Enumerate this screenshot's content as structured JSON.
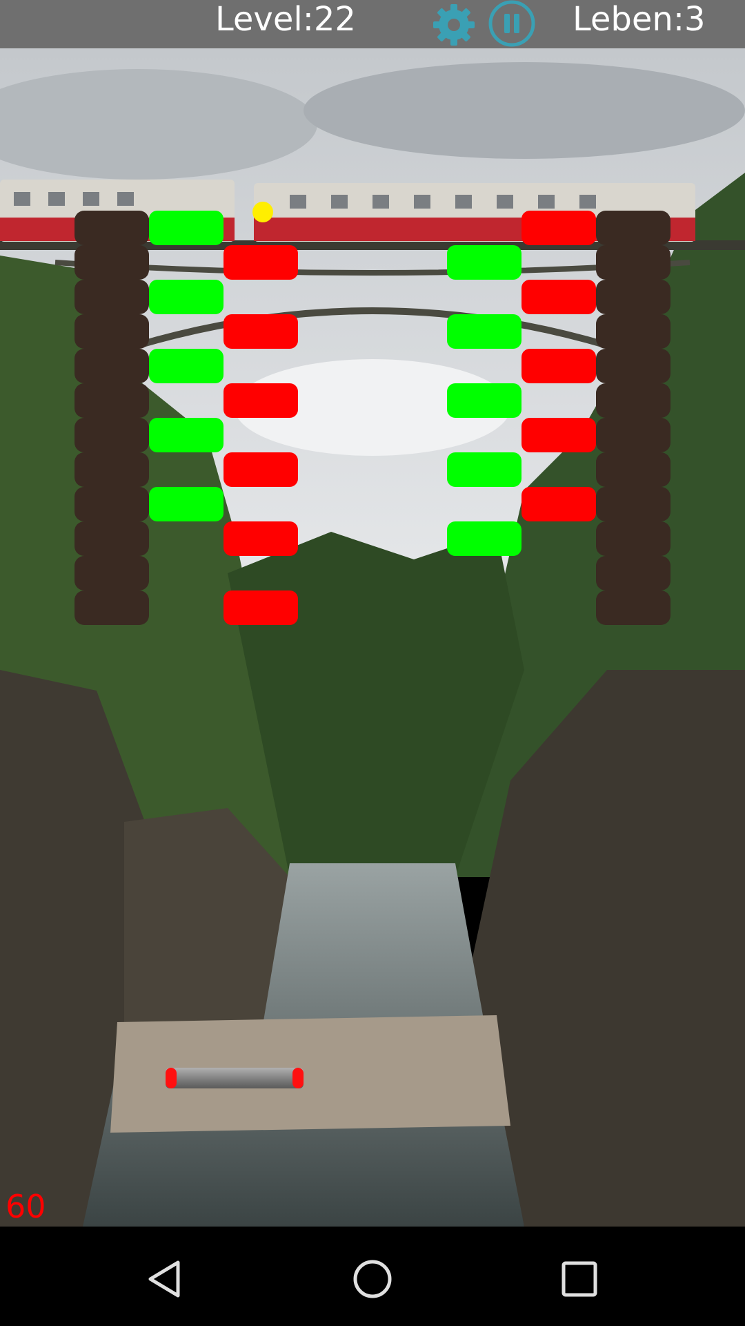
{
  "hud": {
    "level_label": "Level:22",
    "lives_label": "Leben:3",
    "settings_icon": "gear-icon",
    "pause_icon": "pause-icon",
    "accent_color": "#3aa0b4"
  },
  "game": {
    "fps": "60",
    "colors": {
      "green": "#00ff00",
      "red": "#ff0000",
      "wall": "#3a2a22",
      "ball": "#ffee00"
    }
  },
  "navbar": {
    "back_icon": "back-icon",
    "home_icon": "home-icon",
    "recent_icon": "recent-apps-icon"
  }
}
